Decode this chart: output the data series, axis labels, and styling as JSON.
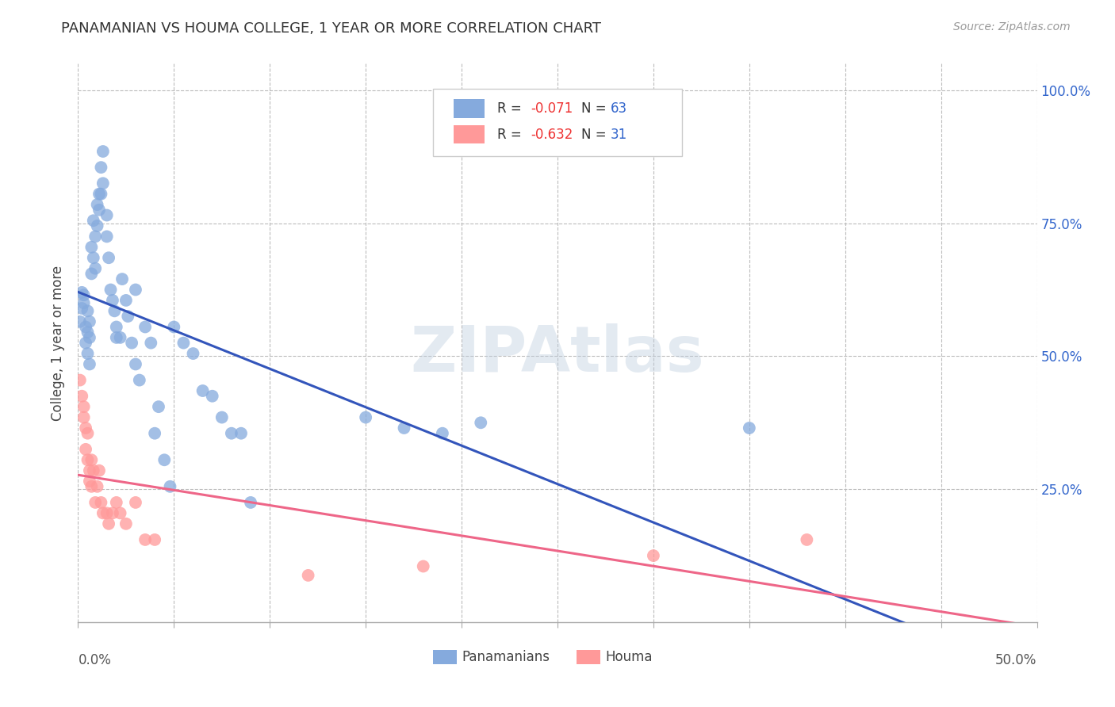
{
  "title": "PANAMANIAN VS HOUMA COLLEGE, 1 YEAR OR MORE CORRELATION CHART",
  "source": "Source: ZipAtlas.com",
  "ylabel": "College, 1 year or more",
  "xlim": [
    0.0,
    0.5
  ],
  "ylim": [
    0.0,
    1.05
  ],
  "blue_color": "#85AADD",
  "pink_color": "#FF9999",
  "blue_line_color": "#3355BB",
  "pink_line_color": "#EE6688",
  "legend_blue_text": "Panamanians",
  "legend_pink_text": "Houma",
  "watermark": "ZIPAtlas",
  "blue_scatter_x": [
    0.001,
    0.002,
    0.002,
    0.003,
    0.003,
    0.004,
    0.004,
    0.005,
    0.005,
    0.005,
    0.006,
    0.006,
    0.006,
    0.007,
    0.007,
    0.008,
    0.008,
    0.009,
    0.009,
    0.01,
    0.01,
    0.011,
    0.011,
    0.012,
    0.012,
    0.013,
    0.013,
    0.015,
    0.015,
    0.016,
    0.017,
    0.018,
    0.019,
    0.02,
    0.02,
    0.022,
    0.023,
    0.025,
    0.026,
    0.028,
    0.03,
    0.03,
    0.032,
    0.035,
    0.038,
    0.04,
    0.042,
    0.045,
    0.048,
    0.05,
    0.055,
    0.06,
    0.065,
    0.07,
    0.075,
    0.08,
    0.085,
    0.09,
    0.15,
    0.17,
    0.19,
    0.21,
    0.35
  ],
  "blue_scatter_y": [
    0.565,
    0.59,
    0.62,
    0.615,
    0.6,
    0.555,
    0.525,
    0.585,
    0.545,
    0.505,
    0.565,
    0.535,
    0.485,
    0.705,
    0.655,
    0.755,
    0.685,
    0.725,
    0.665,
    0.785,
    0.745,
    0.805,
    0.775,
    0.855,
    0.805,
    0.885,
    0.825,
    0.765,
    0.725,
    0.685,
    0.625,
    0.605,
    0.585,
    0.555,
    0.535,
    0.535,
    0.645,
    0.605,
    0.575,
    0.525,
    0.625,
    0.485,
    0.455,
    0.555,
    0.525,
    0.355,
    0.405,
    0.305,
    0.255,
    0.555,
    0.525,
    0.505,
    0.435,
    0.425,
    0.385,
    0.355,
    0.355,
    0.225,
    0.385,
    0.365,
    0.355,
    0.375,
    0.365
  ],
  "pink_scatter_x": [
    0.001,
    0.002,
    0.003,
    0.003,
    0.004,
    0.004,
    0.005,
    0.005,
    0.006,
    0.006,
    0.007,
    0.007,
    0.008,
    0.009,
    0.01,
    0.011,
    0.012,
    0.013,
    0.015,
    0.016,
    0.018,
    0.02,
    0.022,
    0.025,
    0.03,
    0.035,
    0.04,
    0.12,
    0.18,
    0.3,
    0.38
  ],
  "pink_scatter_y": [
    0.455,
    0.425,
    0.405,
    0.385,
    0.365,
    0.325,
    0.355,
    0.305,
    0.285,
    0.265,
    0.305,
    0.255,
    0.285,
    0.225,
    0.255,
    0.285,
    0.225,
    0.205,
    0.205,
    0.185,
    0.205,
    0.225,
    0.205,
    0.185,
    0.225,
    0.155,
    0.155,
    0.088,
    0.105,
    0.125,
    0.155
  ]
}
